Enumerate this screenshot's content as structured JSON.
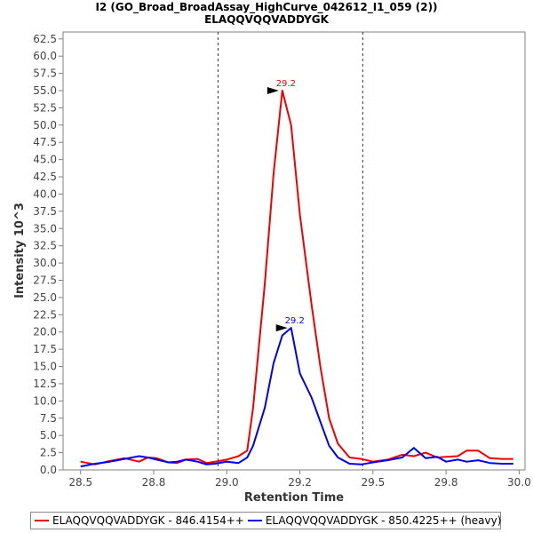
{
  "chart_data": {
    "type": "line",
    "title": "I2 (GO_Broad_BroadAssay_HighCurve_042612_I1_059 (2))",
    "subtitle": "ELAQQVQQVADDYGK",
    "xlabel": "Retention Time",
    "ylabel": "Intensity 10^3",
    "xlim": [
      28.44,
      30.02
    ],
    "ylim": [
      0,
      63.5
    ],
    "x_ticks": [
      "28.5",
      "28.8",
      "29.0",
      "29.2",
      "29.5",
      "29.8",
      "30.0"
    ],
    "x_tick_values": [
      28.5,
      28.75,
      29.0,
      29.25,
      29.5,
      29.75,
      30.0
    ],
    "y_ticks": [
      "0.0",
      "2.5",
      "5.0",
      "7.5",
      "10.0",
      "12.5",
      "15.0",
      "17.5",
      "20.0",
      "22.5",
      "25.0",
      "27.5",
      "30.0",
      "32.5",
      "35.0",
      "37.5",
      "40.0",
      "42.5",
      "45.0",
      "47.5",
      "50.0",
      "52.5",
      "55.0",
      "57.5",
      "60.0",
      "62.5"
    ],
    "y_tick_values": [
      0,
      2.5,
      5,
      7.5,
      10,
      12.5,
      15,
      17.5,
      20,
      22.5,
      25,
      27.5,
      30,
      32.5,
      35,
      37.5,
      40,
      42.5,
      45,
      47.5,
      50,
      52.5,
      55,
      57.5,
      60,
      62.5
    ],
    "boundaries": [
      28.97,
      29.465
    ],
    "series": [
      {
        "name": "ELAQQVQQVADDYGK - 846.4154++",
        "color": "#ee0000",
        "peak_label": "29.2",
        "peak_x": 29.19,
        "peak_y": 55.0,
        "x": [
          28.5,
          28.55,
          28.6,
          28.65,
          28.7,
          28.73,
          28.76,
          28.8,
          28.83,
          28.86,
          28.9,
          28.93,
          28.96,
          29.0,
          29.04,
          29.07,
          29.09,
          29.13,
          29.16,
          29.19,
          29.22,
          29.25,
          29.29,
          29.32,
          29.35,
          29.38,
          29.42,
          29.46,
          29.5,
          29.55,
          29.6,
          29.64,
          29.68,
          29.72,
          29.75,
          29.79,
          29.82,
          29.86,
          29.9,
          29.94,
          29.98
        ],
        "y": [
          1.2,
          0.8,
          1.3,
          1.7,
          1.2,
          1.8,
          1.7,
          1.1,
          1.0,
          1.5,
          1.6,
          1.0,
          1.2,
          1.5,
          2.0,
          2.8,
          9.0,
          27.0,
          43.0,
          55.0,
          50.0,
          37.0,
          24.0,
          15.0,
          7.5,
          3.8,
          1.8,
          1.6,
          1.2,
          1.5,
          2.2,
          2.0,
          2.5,
          1.8,
          1.9,
          2.0,
          2.8,
          2.8,
          1.7,
          1.6,
          1.6
        ]
      },
      {
        "name": "ELAQQVQQVADDYGK - 850.4225++ (heavy)",
        "color": "#0000ee",
        "peak_label": "29.2",
        "peak_x": 29.22,
        "peak_y": 20.6,
        "x": [
          28.5,
          28.55,
          28.6,
          28.65,
          28.7,
          28.73,
          28.76,
          28.8,
          28.83,
          28.86,
          28.9,
          28.93,
          28.96,
          29.0,
          29.04,
          29.07,
          29.09,
          29.13,
          29.16,
          29.19,
          29.22,
          29.25,
          29.29,
          29.32,
          29.35,
          29.38,
          29.42,
          29.46,
          29.5,
          29.55,
          29.6,
          29.64,
          29.68,
          29.72,
          29.75,
          29.79,
          29.82,
          29.86,
          29.9,
          29.94,
          29.98
        ],
        "y": [
          0.5,
          0.9,
          1.2,
          1.6,
          2.0,
          1.8,
          1.5,
          1.1,
          1.2,
          1.5,
          1.2,
          0.8,
          0.9,
          1.2,
          1.0,
          1.8,
          3.5,
          9.0,
          15.5,
          19.5,
          20.6,
          14.0,
          10.5,
          7.0,
          3.5,
          1.8,
          0.9,
          0.8,
          1.1,
          1.4,
          1.8,
          3.2,
          1.7,
          1.9,
          1.2,
          1.5,
          1.2,
          1.4,
          1.0,
          0.9,
          0.9
        ]
      }
    ],
    "legend_position": "bottom"
  }
}
